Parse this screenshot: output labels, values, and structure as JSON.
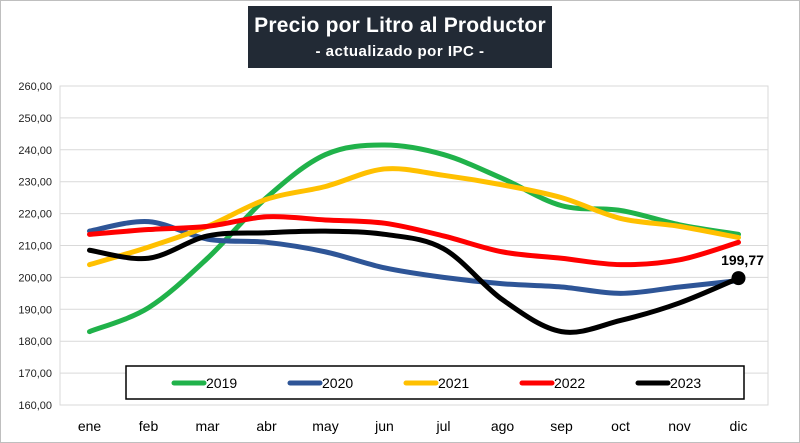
{
  "title": "Precio por Litro al Productor",
  "subtitle": "- actualizado por IPC -",
  "chart_data": {
    "type": "line",
    "categories": [
      "ene",
      "feb",
      "mar",
      "abr",
      "may",
      "jun",
      "jul",
      "ago",
      "sep",
      "oct",
      "nov",
      "dic"
    ],
    "ylim": [
      160,
      260
    ],
    "y_ticks": [
      "160,00",
      "170,00",
      "180,00",
      "190,00",
      "200,00",
      "210,00",
      "220,00",
      "230,00",
      "240,00",
      "250,00",
      "260,00"
    ],
    "grid": true,
    "legend_position": "bottom",
    "series": [
      {
        "name": "2019",
        "color": "#20b24a",
        "values": [
          183.0,
          190.5,
          206.0,
          225.0,
          238.5,
          241.5,
          238.5,
          231.0,
          222.5,
          221.0,
          216.5,
          213.5
        ]
      },
      {
        "name": "2020",
        "color": "#2e5597",
        "values": [
          214.5,
          217.5,
          212.0,
          211.0,
          208.0,
          203.0,
          200.0,
          198.0,
          197.0,
          195.0,
          197.0,
          199.0
        ]
      },
      {
        "name": "2021",
        "color": "#ffc000",
        "values": [
          204.0,
          209.5,
          216.0,
          224.5,
          228.5,
          234.0,
          232.0,
          229.0,
          225.0,
          218.5,
          216.0,
          212.5
        ]
      },
      {
        "name": "2022",
        "color": "#ff0000",
        "values": [
          213.5,
          215.0,
          216.0,
          219.0,
          218.0,
          217.0,
          213.0,
          208.0,
          206.0,
          204.0,
          205.5,
          211.0
        ]
      },
      {
        "name": "2023",
        "color": "#000000",
        "values": [
          208.5,
          206.0,
          213.0,
          214.0,
          214.5,
          213.5,
          209.0,
          193.0,
          183.0,
          186.5,
          192.0,
          199.77
        ]
      }
    ],
    "end_label": "199,77"
  }
}
